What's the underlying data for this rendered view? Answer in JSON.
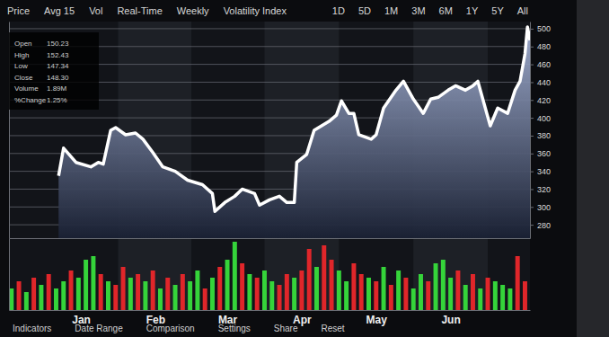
{
  "toolbar": {
    "left": [
      "Price",
      "Avg 15",
      "Vol",
      "Real-Time",
      "Weekly",
      "Volatility Index"
    ],
    "right": [
      "1D",
      "5D",
      "1M",
      "3M",
      "6M",
      "1Y",
      "5Y",
      "All"
    ]
  },
  "info_panel": [
    {
      "label": "Open",
      "value": "150.23"
    },
    {
      "label": "High",
      "value": "152.43"
    },
    {
      "label": "Low",
      "value": "147.34"
    },
    {
      "label": "Close",
      "value": "148.30"
    },
    {
      "label": "Volume",
      "value": "1.89M"
    },
    {
      "label": "%Change",
      "value": "1.25%"
    }
  ],
  "bottom_menu": [
    "Indicators",
    "Date Range",
    "Comparison",
    "Settings",
    "Share",
    "Reset"
  ],
  "chart_data": [
    {
      "type": "area",
      "color": "#ffffff",
      "x": [
        20,
        22,
        27,
        33,
        36,
        38,
        41,
        43,
        47,
        51,
        54,
        58,
        62,
        67,
        72,
        78,
        82,
        83,
        87,
        91,
        94,
        99,
        101,
        105,
        109,
        112,
        115,
        116,
        120,
        123,
        129,
        132,
        134,
        137,
        139,
        141,
        146,
        148,
        151,
        156,
        159,
        163,
        167,
        170,
        173,
        177,
        180,
        184,
        187,
        189,
        192,
        194,
        197,
        201,
        204,
        206,
        208,
        209,
        210
      ],
      "values": [
        335,
        366,
        350,
        345,
        350,
        348,
        386,
        389,
        381,
        383,
        376,
        361,
        345,
        340,
        330,
        325,
        315,
        295,
        305,
        312,
        320,
        315,
        302,
        308,
        312,
        305,
        305,
        350,
        359,
        386,
        396,
        403,
        419,
        405,
        405,
        381,
        376,
        381,
        411,
        431,
        441,
        421,
        405,
        421,
        423,
        431,
        436,
        431,
        436,
        441,
        411,
        391,
        411,
        405,
        431,
        441,
        472,
        502,
        487
      ],
      "xlim": [
        0,
        210
      ],
      "ylim": [
        265,
        508
      ],
      "yticks": [
        280,
        300,
        320,
        340,
        360,
        380,
        400,
        420,
        440,
        460,
        480,
        500
      ],
      "grid": true,
      "tick_labels": "y"
    },
    {
      "type": "bar",
      "x": [
        1,
        4,
        7,
        10,
        13,
        16,
        19,
        22,
        25,
        28,
        31,
        34,
        37,
        40,
        43,
        46,
        49,
        52,
        55,
        58,
        61,
        64,
        67,
        70,
        73,
        76,
        79,
        82,
        85,
        88,
        91,
        94,
        97,
        100,
        103,
        106,
        109,
        112,
        115,
        118,
        121,
        124,
        127,
        130,
        133,
        136,
        139,
        142,
        145,
        148,
        151,
        154,
        157,
        160,
        163,
        166,
        169,
        172,
        175,
        178,
        181,
        184,
        187,
        190,
        193,
        196,
        199,
        202,
        205,
        208
      ],
      "values": [
        30,
        40,
        25,
        45,
        35,
        50,
        30,
        40,
        55,
        45,
        70,
        75,
        50,
        40,
        35,
        60,
        45,
        50,
        40,
        55,
        30,
        45,
        35,
        50,
        40,
        55,
        30,
        45,
        60,
        70,
        95,
        65,
        50,
        45,
        55,
        40,
        35,
        50,
        45,
        55,
        85,
        60,
        90,
        70,
        55,
        40,
        65,
        50,
        45,
        40,
        60,
        35,
        55,
        45,
        30,
        50,
        40,
        65,
        70,
        45,
        55,
        35,
        50,
        30,
        45,
        40,
        35,
        30,
        75,
        40
      ],
      "colors": [
        "#35d43a",
        "#e0262a",
        "#35d43a",
        "#e0262a",
        "#35d43a",
        "#e0262a",
        "#35d43a",
        "#35d43a",
        "#e0262a",
        "#35d43a",
        "#35d43a",
        "#35d43a",
        "#e0262a",
        "#35d43a",
        "#e0262a",
        "#e0262a",
        "#35d43a",
        "#e0262a",
        "#35d43a",
        "#e0262a",
        "#35d43a",
        "#e0262a",
        "#35d43a",
        "#e0262a",
        "#35d43a",
        "#35d43a",
        "#e0262a",
        "#35d43a",
        "#e0262a",
        "#35d43a",
        "#35d43a",
        "#e0262a",
        "#35d43a",
        "#e0262a",
        "#35d43a",
        "#35d43a",
        "#e0262a",
        "#e0262a",
        "#35d43a",
        "#e0262a",
        "#e0262a",
        "#35d43a",
        "#e0262a",
        "#e0262a",
        "#35d43a",
        "#35d43a",
        "#e0262a",
        "#e0262a",
        "#35d43a",
        "#e0262a",
        "#35d43a",
        "#e0262a",
        "#35d43a",
        "#e0262a",
        "#35d43a",
        "#35d43a",
        "#e0262a",
        "#35d43a",
        "#35d43a",
        "#35d43a",
        "#e0262a",
        "#35d43a",
        "#e0262a",
        "#35d43a",
        "#e0262a",
        "#35d43a",
        "#35d43a",
        "#35d43a",
        "#e0262a",
        "#e0262a"
      ],
      "xlim": [
        0,
        210
      ],
      "ylim": [
        0,
        100
      ],
      "xticks": [
        {
          "value": 29,
          "label": "Jan"
        },
        {
          "value": 59,
          "label": "Feb"
        },
        {
          "value": 88,
          "label": "Mar"
        },
        {
          "value": 118,
          "label": "Apr"
        },
        {
          "value": 148,
          "label": "May"
        },
        {
          "value": 178,
          "label": "Jun"
        }
      ],
      "tick_labels": "x"
    }
  ]
}
